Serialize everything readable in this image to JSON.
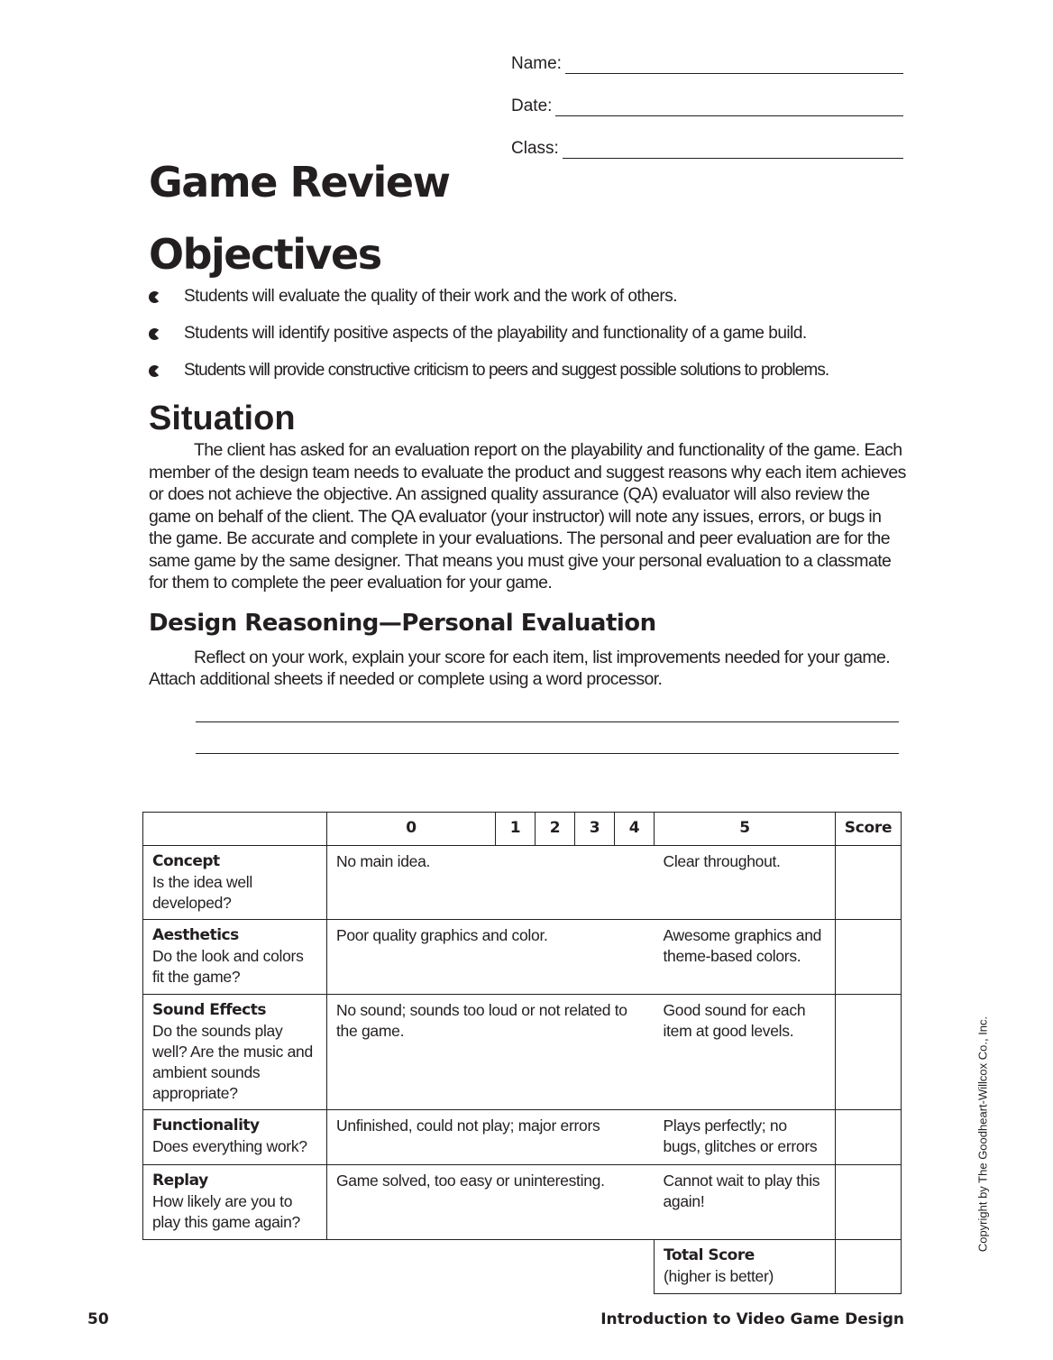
{
  "header_fields": [
    {
      "label": "Name:"
    },
    {
      "label": "Date:"
    },
    {
      "label": "Class:"
    }
  ],
  "title": "Game Review",
  "objectives": {
    "heading": "Objectives",
    "bullet_icon": "pacman-bullet-icon",
    "items": [
      "Students will evaluate the quality of their work and the work of others.",
      "Students will identify positive aspects of the playability and functionality of a game build.",
      "Students will provide constructive criticism to peers and suggest possible solutions to problems."
    ]
  },
  "situation": {
    "heading": "Situation",
    "text": "The client has asked for an evaluation report on the playability and functionality of the game. Each member of the design team needs to evaluate the product and suggest reasons why each item achieves or does not achieve the objective. An assigned quality assurance (QA) evaluator will also review the game on behalf of the client. The QA evaluator (your instructor) will note any issues, errors, or bugs in the game. Be accurate and complete in your evaluations. The personal and peer evaluation are for the same game by the same designer. That means you must give your personal evaluation to a classmate for them to complete the peer evaluation for your game."
  },
  "design": {
    "heading": "Design Reasoning—Personal Evaluation",
    "text": "Reflect on your work, explain your score for each item, list improvements needed for your game. Attach additional sheets if needed or complete using a word processor."
  },
  "rubric": {
    "columns": [
      "",
      "0",
      "1",
      "2",
      "3",
      "4",
      "5",
      "Score"
    ],
    "rows": [
      {
        "title": "Concept",
        "question": "Is the idea well developed?",
        "low": "No main idea.",
        "high": "Clear throughout."
      },
      {
        "title": "Aesthetics",
        "question": "Do the look and colors fit the game?",
        "low": "Poor quality graphics and color.",
        "high": "Awesome graphics and theme-based colors."
      },
      {
        "title": "Sound Effects",
        "question": "Do the sounds play well? Are the music and ambient sounds appropriate?",
        "low": "No sound; sounds too loud or not related to the game.",
        "high": "Good sound for each item at good levels."
      },
      {
        "title": "Functionality",
        "question": "Does everything work?",
        "low": "Unfinished, could not play; major errors",
        "high": "Plays perfectly; no bugs, glitches or errors"
      },
      {
        "title": "Replay",
        "question": "How likely are you to play this game again?",
        "low": "Game solved, too easy or uninteresting.",
        "high": "Cannot wait to play this again!"
      }
    ],
    "total": {
      "label": "Total Score",
      "note": "(higher is better)"
    }
  },
  "footer": {
    "page_number": "50",
    "book_title": "Introduction to Video Game Design",
    "copyright": "Copyright by The Goodheart-Willcox Co., Inc."
  }
}
